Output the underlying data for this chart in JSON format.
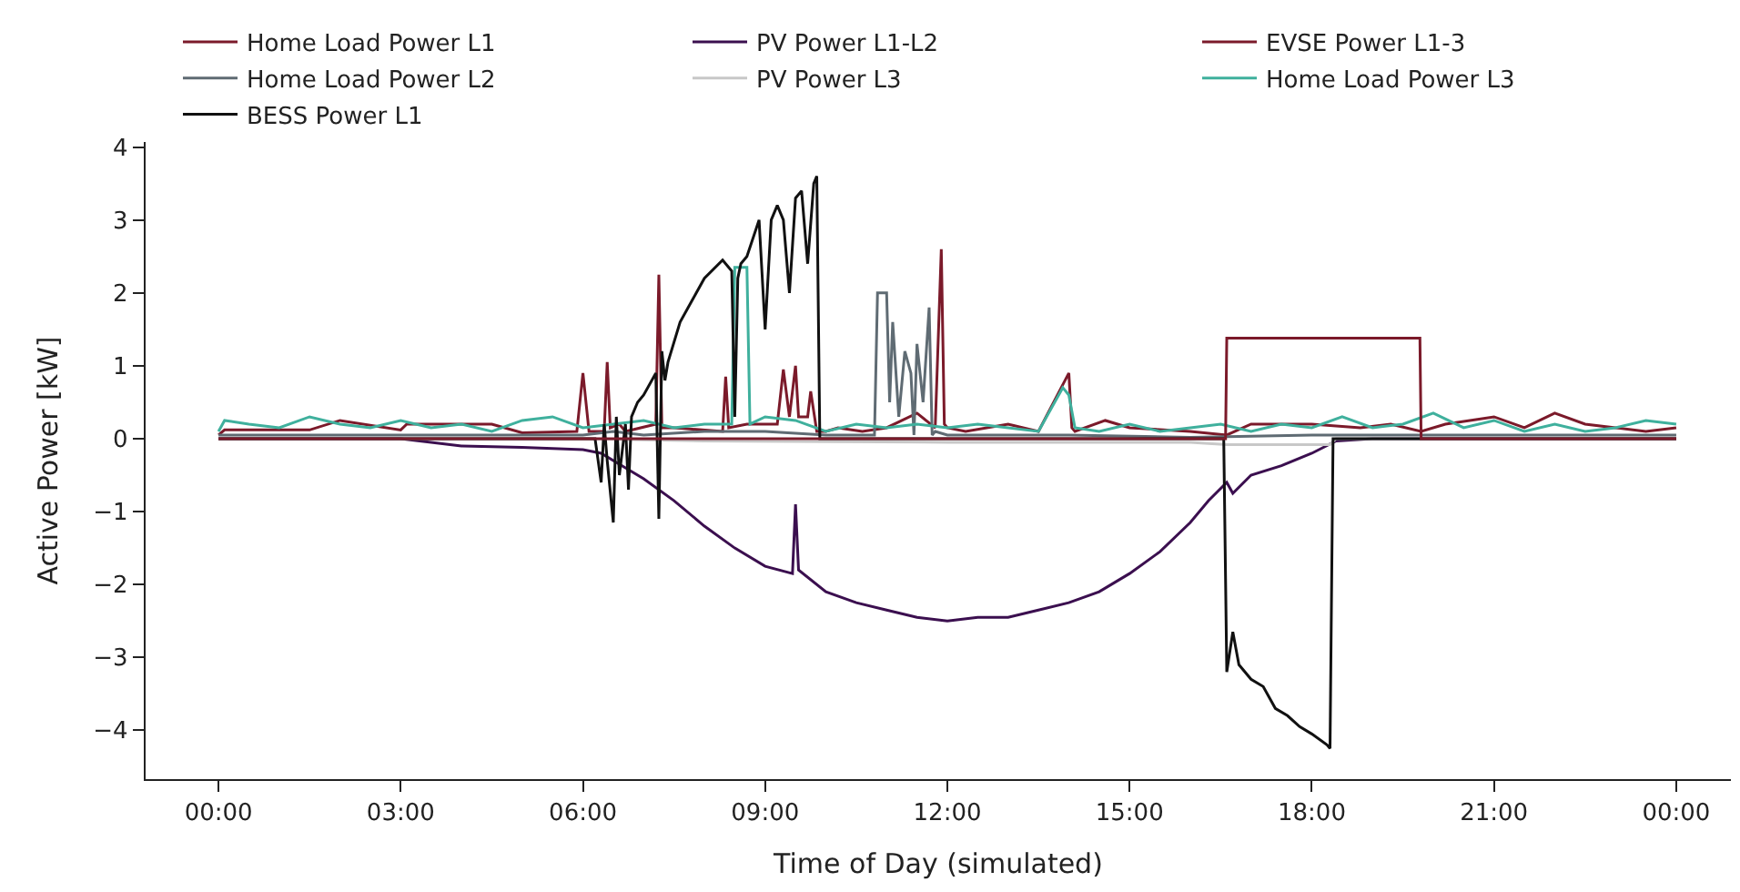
{
  "chart_data": {
    "type": "line",
    "xlabel": "Time of Day (simulated)",
    "ylabel": "Active Power [kW]",
    "xlim": [
      -1.2,
      24.9
    ],
    "xticks": [
      {
        "value": 0,
        "label": "00:00"
      },
      {
        "value": 3,
        "label": "03:00"
      },
      {
        "value": 6,
        "label": "06:00"
      },
      {
        "value": 9,
        "label": "09:00"
      },
      {
        "value": 12,
        "label": "12:00"
      },
      {
        "value": 15,
        "label": "15:00"
      },
      {
        "value": 18,
        "label": "18:00"
      },
      {
        "value": 21,
        "label": "21:00"
      },
      {
        "value": 24,
        "label": "00:00"
      }
    ],
    "ylim": [
      -4.67,
      4.07
    ],
    "yticks": [
      -4,
      -3,
      -2,
      -1,
      0,
      1,
      2,
      3,
      4
    ],
    "grid": false,
    "legend": "top",
    "marker": "none",
    "line_style": "solid",
    "series": [
      {
        "name": "Home Load Power L1",
        "color": "#7b1a2a",
        "x": [
          0,
          0.1,
          1.5,
          2.0,
          3.0,
          3.1,
          4.5,
          5.0,
          5.9,
          6.0,
          6.1,
          6.35,
          6.4,
          6.45,
          6.6,
          6.7,
          7.2,
          7.25,
          7.3,
          7.5,
          8.3,
          8.35,
          8.4,
          8.7,
          9.2,
          9.3,
          9.4,
          9.5,
          9.55,
          9.7,
          9.75,
          9.85,
          10.0,
          10.2,
          10.6,
          11.0,
          11.5,
          11.8,
          11.9,
          11.95,
          12.0,
          12.3,
          13.0,
          13.5,
          14.0,
          14.05,
          14.1,
          14.6,
          15.0,
          16.0,
          16.6,
          17.0,
          18.0,
          18.8,
          19.3,
          19.8,
          20.2,
          21.0,
          21.5,
          22.0,
          22.5,
          23.0,
          23.5,
          24.0
        ],
        "values": [
          0.05,
          0.12,
          0.12,
          0.25,
          0.12,
          0.2,
          0.2,
          0.08,
          0.1,
          0.9,
          0.1,
          0.1,
          1.05,
          0.15,
          0.2,
          0.1,
          0.2,
          2.25,
          0.15,
          0.15,
          0.1,
          0.85,
          0.15,
          0.2,
          0.2,
          0.95,
          0.3,
          1.0,
          0.3,
          0.3,
          0.65,
          0.1,
          0.1,
          0.15,
          0.1,
          0.15,
          0.35,
          0.15,
          2.6,
          0.2,
          0.15,
          0.1,
          0.2,
          0.1,
          0.9,
          0.15,
          0.1,
          0.25,
          0.15,
          0.1,
          0.05,
          0.2,
          0.2,
          0.15,
          0.2,
          0.1,
          0.2,
          0.3,
          0.15,
          0.35,
          0.2,
          0.15,
          0.1,
          0.15
        ]
      },
      {
        "name": "Home Load Power L2",
        "color": "#5f6b73",
        "x": [
          0,
          3,
          6,
          6.5,
          7,
          8,
          9,
          10,
          10.8,
          10.85,
          11.0,
          11.05,
          11.1,
          11.2,
          11.3,
          11.4,
          11.45,
          11.5,
          11.6,
          11.7,
          11.75,
          11.8,
          12,
          14,
          16,
          18,
          20,
          22,
          24
        ],
        "values": [
          0.05,
          0.05,
          0.05,
          0.1,
          0.05,
          0.1,
          0.1,
          0.05,
          0.05,
          2.0,
          2.0,
          0.5,
          1.6,
          0.3,
          1.2,
          0.9,
          0.05,
          1.3,
          0.5,
          1.8,
          0.05,
          0.1,
          0.05,
          0.05,
          0.02,
          0.05,
          0.05,
          0.05,
          0.05
        ]
      },
      {
        "name": "Home Load Power L3",
        "color": "#3fb09d",
        "x": [
          0,
          0.1,
          0.5,
          1.0,
          1.5,
          2.0,
          2.5,
          3.0,
          3.5,
          4.0,
          4.5,
          5.0,
          5.5,
          6.0,
          6.5,
          7.0,
          7.5,
          8.0,
          8.45,
          8.5,
          8.7,
          8.75,
          9.0,
          9.5,
          10.0,
          10.5,
          11.0,
          11.5,
          12.0,
          12.5,
          13.0,
          13.5,
          13.9,
          14.0,
          14.1,
          14.5,
          15.0,
          15.5,
          16.0,
          16.5,
          17.0,
          17.5,
          18.0,
          18.5,
          19.0,
          19.5,
          20.0,
          20.5,
          21.0,
          21.5,
          22.0,
          22.5,
          23.0,
          23.5,
          24.0
        ],
        "values": [
          0.1,
          0.25,
          0.2,
          0.15,
          0.3,
          0.2,
          0.15,
          0.25,
          0.15,
          0.2,
          0.1,
          0.25,
          0.3,
          0.15,
          0.2,
          0.25,
          0.15,
          0.2,
          0.2,
          2.35,
          2.35,
          0.2,
          0.3,
          0.25,
          0.1,
          0.2,
          0.15,
          0.2,
          0.15,
          0.2,
          0.15,
          0.1,
          0.7,
          0.6,
          0.15,
          0.1,
          0.2,
          0.1,
          0.15,
          0.2,
          0.1,
          0.2,
          0.15,
          0.3,
          0.15,
          0.2,
          0.35,
          0.15,
          0.25,
          0.1,
          0.2,
          0.1,
          0.15,
          0.25,
          0.2
        ]
      },
      {
        "name": "PV Power L1-L2",
        "color": "#3b0f4f",
        "x": [
          0,
          3,
          4,
          5,
          6,
          6.3,
          6.6,
          7,
          7.5,
          8,
          8.5,
          9,
          9.45,
          9.5,
          9.55,
          10,
          10.5,
          11,
          11.5,
          12,
          12.5,
          13,
          13.5,
          14,
          14.5,
          15,
          15.5,
          16,
          16.3,
          16.6,
          16.7,
          17,
          17.5,
          18,
          18.4,
          19,
          19.5,
          24
        ],
        "values": [
          0,
          0,
          -0.1,
          -0.12,
          -0.15,
          -0.2,
          -0.35,
          -0.55,
          -0.85,
          -1.2,
          -1.5,
          -1.75,
          -1.85,
          -0.9,
          -1.8,
          -2.1,
          -2.25,
          -2.35,
          -2.45,
          -2.5,
          -2.45,
          -2.45,
          -2.35,
          -2.25,
          -2.1,
          -1.85,
          -1.55,
          -1.15,
          -0.85,
          -0.6,
          -0.75,
          -0.5,
          -0.37,
          -0.2,
          -0.03,
          0,
          0,
          0
        ]
      },
      {
        "name": "PV Power L3",
        "color": "#c8c8c8",
        "x": [
          0,
          6,
          8,
          12,
          16,
          16.6,
          18.3,
          18.4,
          24
        ],
        "values": [
          0,
          0,
          -0.03,
          -0.05,
          -0.05,
          -0.08,
          -0.08,
          0,
          0
        ]
      },
      {
        "name": "BESS Power L1",
        "color": "#111111",
        "x": [
          0,
          6.2,
          6.3,
          6.35,
          6.4,
          6.5,
          6.55,
          6.6,
          6.7,
          6.75,
          6.8,
          6.9,
          7.0,
          7.2,
          7.25,
          7.3,
          7.35,
          7.4,
          7.6,
          7.8,
          8.0,
          8.3,
          8.45,
          8.5,
          8.55,
          8.6,
          8.7,
          8.9,
          9.0,
          9.1,
          9.2,
          9.3,
          9.4,
          9.5,
          9.6,
          9.7,
          9.8,
          9.85,
          9.9,
          9.95,
          16.55,
          16.6,
          16.7,
          16.8,
          17.0,
          17.2,
          17.4,
          17.6,
          17.8,
          18.0,
          18.25,
          18.3,
          18.35,
          24
        ],
        "values": [
          0,
          0,
          -0.6,
          0.2,
          -0.3,
          -1.15,
          0.3,
          -0.5,
          0.2,
          -0.7,
          0.3,
          0.5,
          0.6,
          0.9,
          -1.1,
          1.2,
          0.8,
          1.05,
          1.6,
          1.9,
          2.2,
          2.45,
          2.3,
          0.3,
          2.2,
          2.4,
          2.5,
          3.0,
          1.5,
          3.0,
          3.2,
          3.0,
          2.0,
          3.3,
          3.4,
          2.4,
          3.5,
          3.6,
          0,
          0,
          0,
          -3.2,
          -2.65,
          -3.1,
          -3.3,
          -3.4,
          -3.7,
          -3.8,
          -3.95,
          -4.05,
          -4.2,
          -4.25,
          0,
          0
        ]
      },
      {
        "name": "EVSE Power L1-3",
        "color": "#7b1a2a",
        "x": [
          0,
          16.58,
          16.6,
          19.78,
          19.8,
          24
        ],
        "values": [
          0,
          0,
          1.38,
          1.38,
          0,
          0
        ]
      }
    ]
  }
}
